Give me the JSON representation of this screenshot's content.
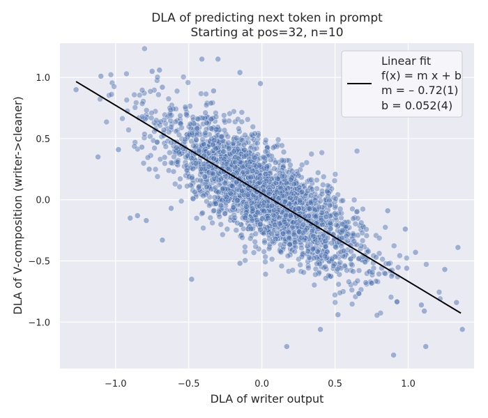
{
  "chart_data": {
    "type": "scatter",
    "title": "DLA of predicting next token in prompt",
    "subtitle": "Starting at pos=32, n=10",
    "xlabel": "DLA of writer output",
    "ylabel": "DLA of V-composition (writer->cleaner)",
    "xlim": [
      -1.38,
      1.45
    ],
    "ylim": [
      -1.38,
      1.28
    ],
    "xticks": [
      -1.0,
      -0.5,
      0.0,
      0.5,
      1.0
    ],
    "xtick_labels": [
      "−1.0",
      "−0.5",
      "0.0",
      "0.5",
      "1.0"
    ],
    "yticks": [
      -1.0,
      -0.5,
      0.0,
      0.5,
      1.0
    ],
    "ytick_labels": [
      "−1.0",
      "−0.5",
      "0.0",
      "0.5",
      "1.0"
    ],
    "grid": true,
    "legend_position": "top-right",
    "colors": {
      "background": "#eaeaf2",
      "points": "#4c72b0",
      "fit_line": "#000000",
      "grid": "#ffffff"
    },
    "series": [
      {
        "kind": "scatter",
        "note_count_approx": "several thousand points, main cloud centered near (0,0) with slope about -0.72",
        "outliers": [
          [
            -1.27,
            0.9
          ],
          [
            -1.1,
            1.01
          ],
          [
            -1.12,
            0.35
          ],
          [
            -0.98,
            0.41
          ],
          [
            -0.9,
            -0.15
          ],
          [
            -0.85,
            -0.13
          ],
          [
            -0.79,
            -0.17
          ],
          [
            -0.82,
            0.43
          ],
          [
            -0.77,
            0.25
          ],
          [
            -0.68,
            -0.33
          ],
          [
            -0.62,
            -0.07
          ],
          [
            -0.48,
            -0.65
          ],
          [
            -0.41,
            1.15
          ],
          [
            -0.3,
            1.15
          ],
          [
            -0.15,
            1.04
          ],
          [
            -0.01,
            0.95
          ],
          [
            -0.15,
            -0.52
          ],
          [
            0.17,
            -1.2
          ],
          [
            0.4,
            -1.06
          ],
          [
            0.52,
            -0.94
          ],
          [
            0.9,
            -1.27
          ],
          [
            1.12,
            -1.2
          ],
          [
            0.63,
            -0.34
          ],
          [
            0.78,
            -0.47
          ],
          [
            0.99,
            -0.56
          ],
          [
            1.05,
            -0.43
          ],
          [
            1.25,
            -0.57
          ],
          [
            1.34,
            -0.39
          ],
          [
            1.33,
            -0.84
          ],
          [
            1.37,
            -1.06
          ],
          [
            0.98,
            -0.24
          ],
          [
            0.86,
            -0.09
          ],
          [
            0.55,
            -0.2
          ],
          [
            -0.33,
            0.89
          ],
          [
            -0.7,
            1.06
          ],
          [
            -0.75,
            1.05
          ],
          [
            -0.68,
            0.92
          ],
          [
            1.09,
            -0.86
          ],
          [
            1.11,
            -0.91
          ],
          [
            0.55,
            -0.25
          ]
        ]
      }
    ],
    "fit": {
      "legend_lines": [
        "Linear fit",
        "f(x) = m x + b",
        "m = – 0.72(1)",
        "b = 0.052(4)"
      ],
      "m": -0.72,
      "b": 0.052,
      "x_range": [
        -1.27,
        1.36
      ]
    }
  }
}
